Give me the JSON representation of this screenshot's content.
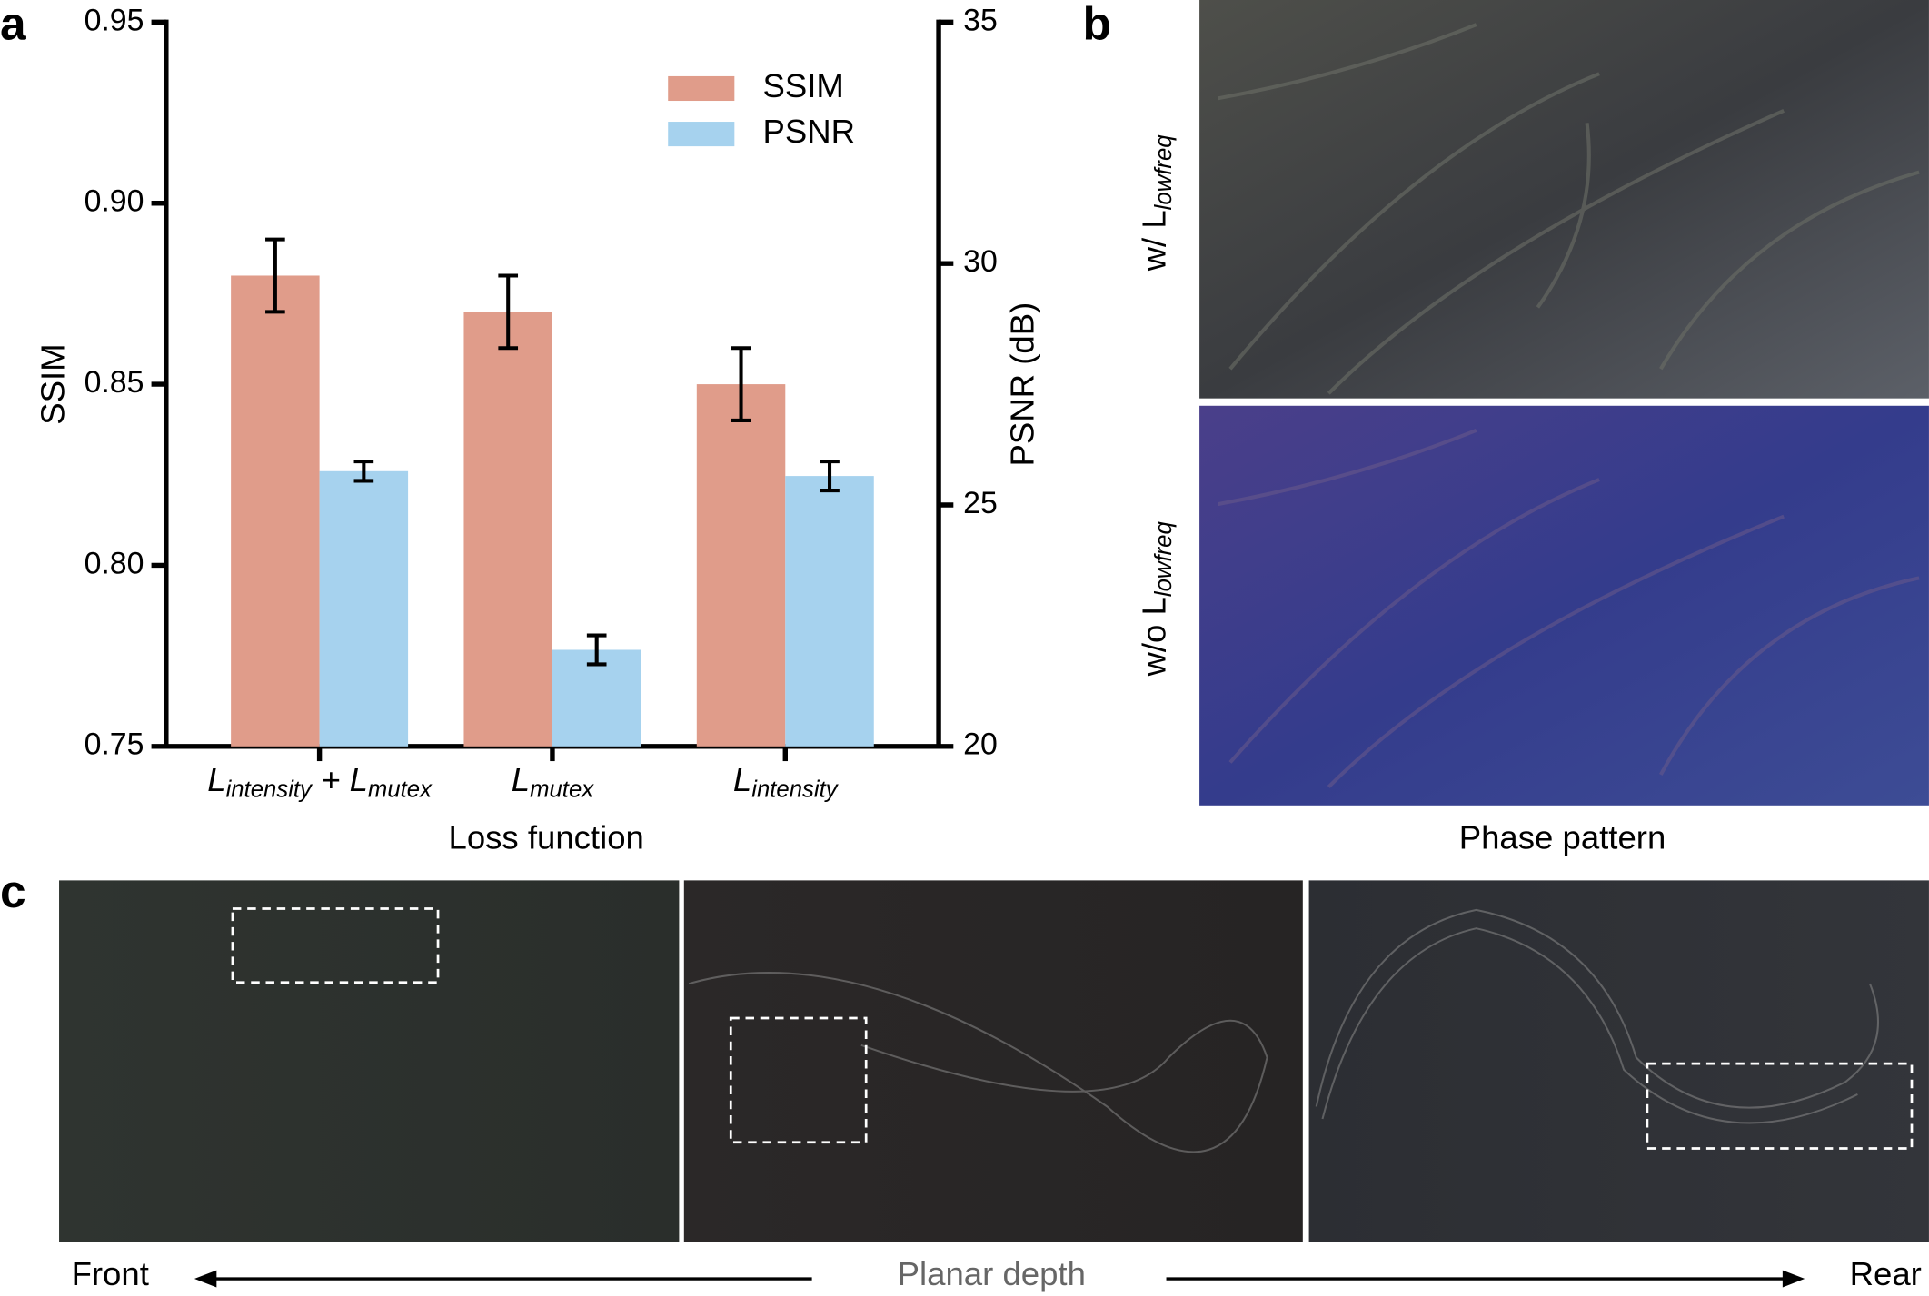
{
  "panel_labels": [
    "a",
    "b",
    "c"
  ],
  "chart_data": {
    "type": "bar",
    "categories": [
      [
        "L",
        "intensity",
        " + L",
        "mutex"
      ],
      [
        "L",
        "mutex"
      ],
      [
        "L",
        "intensity"
      ]
    ],
    "xlabel": "Loss function",
    "ylabel": "SSIM",
    "y2label": "PSNR (dB)",
    "ylim": [
      0.75,
      0.95
    ],
    "yticks": [
      0.75,
      {
        "value": 0.8,
        "label": "0.80"
      },
      0.85,
      {
        "value": 0.9,
        "label": "0.90"
      },
      0.95
    ],
    "y2lim": [
      20,
      35
    ],
    "y2ticks": [
      20,
      25,
      30,
      35
    ],
    "legend": "upper right",
    "series": [
      {
        "name": "SSIM",
        "color": "#e09c8a",
        "values": [
          0.88,
          0.87,
          0.85
        ],
        "errors": [
          0.01,
          0.01,
          0.01
        ]
      },
      {
        "name": "PSNR",
        "color": "#a6d2ee",
        "axis": "y2",
        "values": [
          25.7,
          22.0,
          25.6
        ],
        "errors": [
          0.2,
          0.3,
          0.3
        ]
      }
    ]
  },
  "phase_panel": {
    "row_labels": [
      [
        "w/ L",
        "lowfreq"
      ],
      [
        "w/o L",
        "lowfreq"
      ]
    ],
    "caption": "Phase pattern"
  },
  "depth_panel": {
    "front": "Front",
    "axis_label": "Planar depth",
    "rear": "Rear"
  }
}
